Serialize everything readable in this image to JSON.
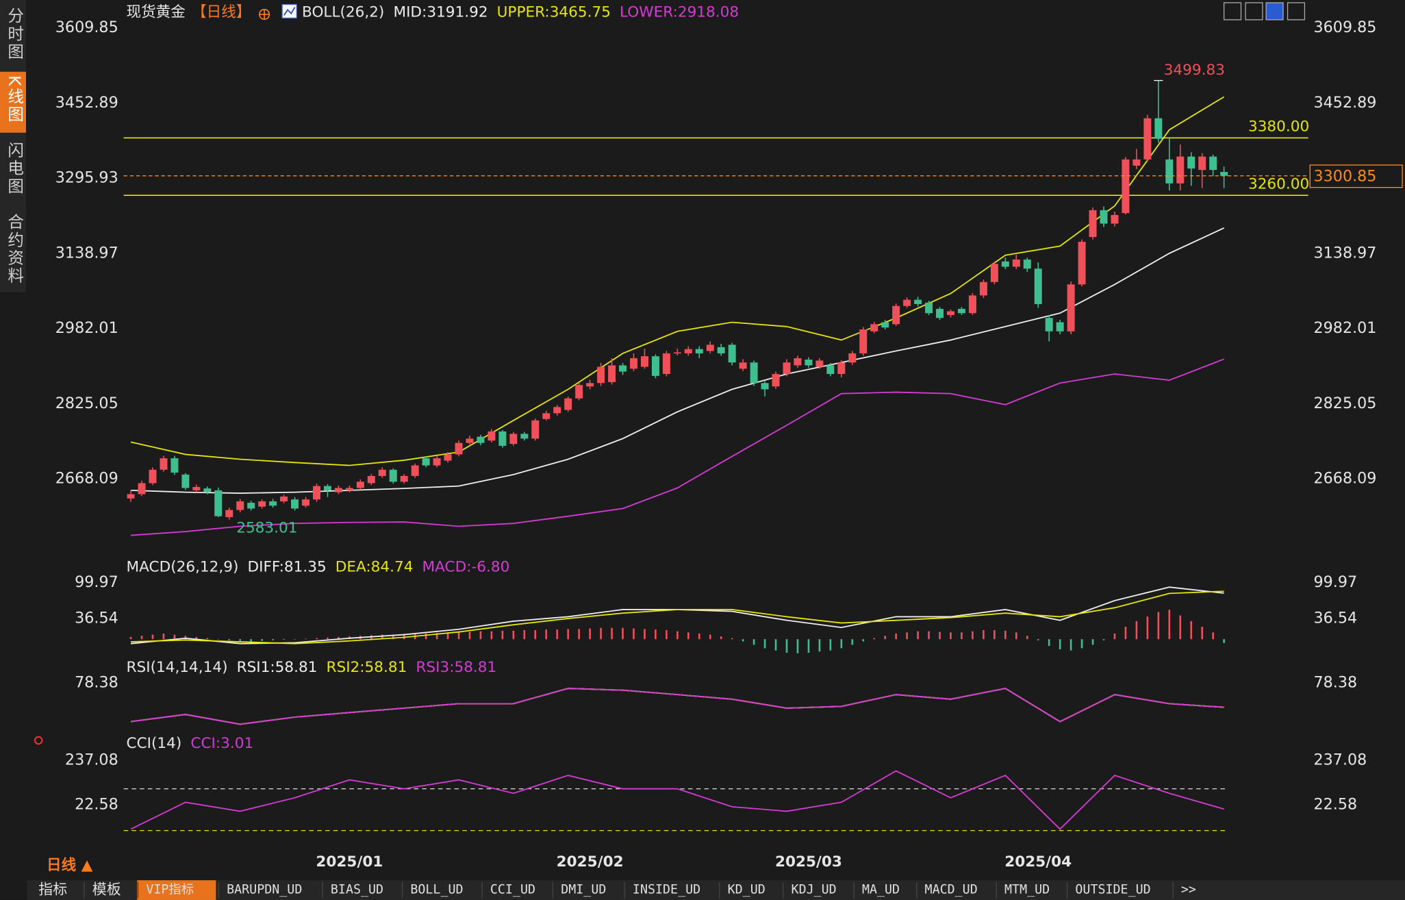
{
  "sidebar": [
    "分时图",
    "K线图",
    "闪电图",
    "合约资料"
  ],
  "header": {
    "instrument": "现货黄金",
    "period": "【日线】"
  },
  "footer": {
    "period": "日线 ▲",
    "tabs": [
      "指标",
      "模板",
      "VIP指标",
      "BARUPDN_UD",
      "BIAS_UD",
      "BOLL_UD",
      "CCI_UD",
      "DMI_UD",
      "INSIDE_UD",
      "KD_UD",
      "KDJ_UD",
      "MA_UD",
      "MACD_UD",
      "MTM_UD",
      "OUTSIDE_UD",
      ">>"
    ]
  },
  "chart_data": [
    {
      "type": "candlestick",
      "title": "BOLL(26,2)",
      "categories": [
        null,
        null,
        null,
        null,
        null,
        null,
        null,
        null,
        null,
        null,
        null,
        null,
        null,
        null,
        null,
        null,
        null,
        null,
        null,
        null,
        "2025/01",
        null,
        null,
        null,
        null,
        null,
        null,
        null,
        null,
        null,
        null,
        null,
        null,
        null,
        null,
        null,
        null,
        null,
        null,
        null,
        null,
        null,
        "2025/02",
        null,
        null,
        null,
        null,
        null,
        null,
        null,
        null,
        null,
        null,
        null,
        null,
        null,
        null,
        null,
        null,
        null,
        null,
        null,
        "2025/03",
        null,
        null,
        null,
        null,
        null,
        null,
        null,
        null,
        null,
        null,
        null,
        null,
        null,
        null,
        null,
        null,
        null,
        null,
        null,
        null,
        "2025/04",
        null,
        null,
        null,
        null,
        null,
        null,
        null,
        null,
        null,
        null,
        null,
        null,
        null,
        null,
        null,
        null,
        null
      ],
      "ohlc": [
        [
          2627,
          2645,
          2620,
          2636
        ],
        [
          2636,
          2664,
          2632,
          2659
        ],
        [
          2659,
          2692,
          2655,
          2687
        ],
        [
          2687,
          2716,
          2683,
          2711
        ],
        [
          2711,
          2716,
          2676,
          2681
        ],
        [
          2677,
          2680,
          2645,
          2649
        ],
        [
          2644,
          2656,
          2640,
          2651
        ],
        [
          2648,
          2652,
          2636,
          2640
        ],
        [
          2644,
          2650,
          2588,
          2590
        ],
        [
          2588,
          2608,
          2583.01,
          2603
        ],
        [
          2603,
          2626,
          2598,
          2621
        ],
        [
          2618,
          2622,
          2602,
          2606
        ],
        [
          2610,
          2625,
          2606,
          2621
        ],
        [
          2621,
          2626,
          2608,
          2612
        ],
        [
          2621,
          2635,
          2617,
          2631
        ],
        [
          2625,
          2630,
          2602,
          2606
        ],
        [
          2612,
          2630,
          2608,
          2625
        ],
        [
          2625,
          2658,
          2620,
          2653
        ],
        [
          2653,
          2657,
          2630,
          2644
        ],
        [
          2640,
          2654,
          2636,
          2649
        ],
        [
          2644,
          2654,
          2640,
          2649
        ],
        [
          2649,
          2667,
          2645,
          2662
        ],
        [
          2659,
          2678,
          2655,
          2674
        ],
        [
          2674,
          2692,
          2670,
          2687
        ],
        [
          2687,
          2690,
          2658,
          2662
        ],
        [
          2662,
          2678,
          2658,
          2674
        ],
        [
          2674,
          2700,
          2670,
          2696
        ],
        [
          2711,
          2715,
          2692,
          2696
        ],
        [
          2696,
          2715,
          2692,
          2711
        ],
        [
          2706,
          2724,
          2702,
          2719
        ],
        [
          2719,
          2748,
          2715,
          2743
        ],
        [
          2743,
          2758,
          2740,
          2752
        ],
        [
          2756,
          2760,
          2738,
          2743
        ],
        [
          2748,
          2772,
          2744,
          2767
        ],
        [
          2767,
          2770,
          2733,
          2737
        ],
        [
          2741,
          2766,
          2737,
          2762
        ],
        [
          2762,
          2766,
          2748,
          2752
        ],
        [
          2752,
          2794,
          2748,
          2790
        ],
        [
          2793,
          2810,
          2790,
          2805
        ],
        [
          2805,
          2822,
          2800,
          2818
        ],
        [
          2812,
          2840,
          2808,
          2836
        ],
        [
          2836,
          2868,
          2832,
          2864
        ],
        [
          2861,
          2875,
          2855,
          2868
        ],
        [
          2868,
          2910,
          2862,
          2902
        ],
        [
          2870,
          2920,
          2865,
          2905
        ],
        [
          2905,
          2910,
          2885,
          2892
        ],
        [
          2898,
          2930,
          2893,
          2920
        ],
        [
          2902,
          2940,
          2898,
          2924
        ],
        [
          2924,
          2928,
          2878,
          2883
        ],
        [
          2887,
          2935,
          2882,
          2930
        ],
        [
          2930,
          2940,
          2926,
          2932
        ],
        [
          2930,
          2945,
          2925,
          2939
        ],
        [
          2939,
          2945,
          2920,
          2930
        ],
        [
          2935,
          2955,
          2930,
          2948
        ],
        [
          2943,
          2950,
          2925,
          2930
        ],
        [
          2948,
          2952,
          2905,
          2911
        ],
        [
          2898,
          2918,
          2893,
          2911
        ],
        [
          2911,
          2915,
          2862,
          2868
        ],
        [
          2868,
          2872,
          2840,
          2855
        ],
        [
          2861,
          2892,
          2856,
          2887
        ],
        [
          2887,
          2918,
          2882,
          2911
        ],
        [
          2905,
          2925,
          2900,
          2920
        ],
        [
          2917,
          2922,
          2900,
          2905
        ],
        [
          2902,
          2920,
          2898,
          2915
        ],
        [
          2905,
          2910,
          2882,
          2887
        ],
        [
          2887,
          2916,
          2880,
          2911
        ],
        [
          2911,
          2935,
          2906,
          2930
        ],
        [
          2930,
          2985,
          2925,
          2980
        ],
        [
          2976,
          2996,
          2972,
          2991
        ],
        [
          2995,
          3000,
          2980,
          2984
        ],
        [
          2991,
          3034,
          2987,
          3029
        ],
        [
          3029,
          3047,
          3025,
          3042
        ],
        [
          3042,
          3048,
          3028,
          3033
        ],
        [
          3036,
          3040,
          3010,
          3014
        ],
        [
          3023,
          3027,
          3000,
          3004
        ],
        [
          3010,
          3022,
          3005,
          3018
        ],
        [
          3023,
          3027,
          3010,
          3014
        ],
        [
          3014,
          3056,
          3010,
          3051
        ],
        [
          3051,
          3084,
          3046,
          3079
        ],
        [
          3079,
          3122,
          3074,
          3117
        ],
        [
          3122,
          3130,
          3106,
          3111
        ],
        [
          3111,
          3136,
          3106,
          3126
        ],
        [
          3126,
          3130,
          3100,
          3107
        ],
        [
          3107,
          3120,
          3025,
          3033
        ],
        [
          3004,
          3010,
          2955,
          2976
        ],
        [
          2995,
          3000,
          2970,
          2976
        ],
        [
          2976,
          3080,
          2970,
          3074
        ],
        [
          3074,
          3168,
          3070,
          3163
        ],
        [
          3173,
          3235,
          3168,
          3229
        ],
        [
          3229,
          3237,
          3194,
          3201
        ],
        [
          3201,
          3226,
          3195,
          3219
        ],
        [
          3223,
          3340,
          3220,
          3335
        ],
        [
          3322,
          3357,
          3315,
          3335
        ],
        [
          3335,
          3428,
          3330,
          3421
        ],
        [
          3421,
          3499.83,
          3370,
          3378
        ],
        [
          3335,
          3380,
          3270,
          3285
        ],
        [
          3285,
          3366,
          3270,
          3341
        ],
        [
          3341,
          3350,
          3280,
          3316
        ],
        [
          3313,
          3348,
          3275,
          3341
        ],
        [
          3341,
          3345,
          3300,
          3313
        ],
        [
          3309,
          3320,
          3275,
          3300.85
        ]
      ],
      "up_color": "#f0505a",
      "down_color": "#3fbf8f",
      "last_price_color": "#ff8c1a",
      "x": [
        0,
        5,
        10,
        15,
        20,
        25,
        30,
        35,
        40,
        45,
        50,
        55,
        60,
        65,
        70,
        75,
        80,
        85,
        90,
        95,
        100
      ],
      "series": [
        {
          "name": "MID:3191.92",
          "color": "#eeeeee",
          "values": [
            2644,
            2640,
            2638,
            2640,
            2644,
            2648,
            2653,
            2677,
            2709,
            2752,
            2808,
            2855,
            2887,
            2911,
            2935,
            2958,
            2986,
            3014,
            3074,
            3139,
            3191.92
          ]
        },
        {
          "name": "UPPER:3465.75",
          "color": "#e6e600",
          "values": [
            2745,
            2719,
            2709,
            2702,
            2696,
            2707,
            2724,
            2790,
            2855,
            2930,
            2976,
            2995,
            2986,
            2958,
            3004,
            3055,
            3135,
            3154,
            3238,
            3397,
            3465.75
          ]
        },
        {
          "name": "LOWER:2918.08",
          "color": "#d63ad6",
          "values": [
            2550,
            2558,
            2569,
            2575,
            2577,
            2578,
            2569,
            2575,
            2590,
            2606,
            2649,
            2715,
            2780,
            2846,
            2849,
            2846,
            2823,
            2868,
            2887,
            2874,
            2918.08
          ]
        }
      ],
      "hlines": [
        {
          "value": 3380,
          "label": "3380.00",
          "color": "#e6e600"
        },
        {
          "value": 3260,
          "label": "3260.00",
          "color": "#e6e600"
        }
      ],
      "ylim": [
        2526.1,
        3626.7
      ],
      "yticks": [
        3609.85,
        3452.89,
        3295.93,
        3138.97,
        2982.01,
        2825.05,
        2668.09
      ],
      "grid": false
    },
    {
      "type": "macd",
      "title": "MACD(26,12,9)",
      "x": [
        0,
        5,
        10,
        15,
        20,
        25,
        30,
        35,
        40,
        45,
        50,
        55,
        60,
        65,
        70,
        75,
        80,
        85,
        90,
        95,
        100
      ],
      "series": [
        {
          "name": "DIFF:81.35",
          "color": "#eeeeee",
          "values": [
            -7.9,
            1.6,
            -7.9,
            -6.3,
            1.6,
            8,
            17.5,
            31.8,
            39.7,
            52.4,
            52.4,
            49.2,
            33.4,
            20.7,
            39.7,
            39.7,
            52.4,
            33.4,
            68.3,
            92,
            81.35
          ]
        },
        {
          "name": "DEA:84.74",
          "color": "#e6e600",
          "values": [
            -4.7,
            -1.5,
            -4.7,
            -7.9,
            -3.1,
            3.3,
            12.8,
            25.5,
            36.5,
            46.1,
            52.4,
            52.4,
            39.7,
            28.6,
            33.4,
            38.1,
            46.1,
            39.7,
            55.6,
            81,
            84.74
          ]
        }
      ],
      "histogram": {
        "name": "MACD:-6.80",
        "color": "#d63ad6",
        "up_color": "#f0505a",
        "down_color": "#3fbf8f",
        "values": [
          4,
          6,
          8,
          10,
          8,
          6,
          4,
          2,
          0,
          -2,
          -3,
          -4,
          -3,
          -2,
          -1,
          0,
          1,
          2,
          3,
          4,
          5,
          6,
          7,
          8,
          8,
          9,
          10,
          10,
          11,
          12,
          12,
          13,
          14,
          14,
          15,
          15,
          16,
          16,
          17,
          17,
          18,
          18,
          19,
          20,
          20,
          20,
          19,
          18,
          17,
          16,
          14,
          12,
          10,
          8,
          5,
          2,
          -4,
          -10,
          -16,
          -20,
          -24,
          -25,
          -24,
          -22,
          -20,
          -16,
          -10,
          -4,
          2,
          6,
          10,
          12,
          14,
          14,
          13,
          12,
          12,
          14,
          16,
          16,
          15,
          12,
          6,
          -2,
          -12,
          -18,
          -20,
          -16,
          -10,
          -2,
          10,
          22,
          32,
          40,
          48,
          52,
          42,
          32,
          22,
          12,
          -6.8
        ]
      },
      "ylim": [
        -31.65,
        134.86
      ],
      "yticks": [
        99.97,
        36.54
      ],
      "grid": false
    },
    {
      "type": "line",
      "title": "RSI(14,14,14)",
      "x": [
        0,
        5,
        10,
        15,
        20,
        25,
        30,
        35,
        40,
        45,
        50,
        55,
        60,
        65,
        70,
        75,
        80,
        85,
        90,
        95,
        100
      ],
      "series": [
        {
          "name": "RSI1:58.81",
          "color": "#eeeeee",
          "values": [
            47.2,
            53,
            45,
            50.8,
            54.5,
            58.1,
            61.7,
            61.7,
            74,
            72.6,
            69,
            65.3,
            58.1,
            59.5,
            69,
            65.3,
            74,
            47.2,
            69,
            61.7,
            58.81
          ]
        },
        {
          "name": "RSI2:58.81",
          "color": "#e6e600",
          "values": [
            47.2,
            53,
            45,
            50.8,
            54.5,
            58.1,
            61.7,
            61.7,
            74,
            72.6,
            69,
            65.3,
            58.1,
            59.5,
            69,
            65.3,
            74,
            47.2,
            69,
            61.7,
            58.81
          ]
        },
        {
          "name": "RSI3:58.81",
          "color": "#d63ad6",
          "values": [
            47.2,
            53,
            45,
            50.8,
            54.5,
            58.1,
            61.7,
            61.7,
            74,
            72.6,
            69,
            65.3,
            58.1,
            59.5,
            69,
            65.3,
            74,
            47.2,
            69,
            61.7,
            58.81
          ]
        }
      ],
      "ylim": [
        36.33,
        94.33
      ],
      "yticks": [
        78.38
      ],
      "grid": false
    },
    {
      "type": "line",
      "title": "CCI(14)",
      "x": [
        0,
        5,
        10,
        15,
        20,
        25,
        30,
        35,
        40,
        45,
        50,
        55,
        60,
        65,
        70,
        75,
        80,
        85,
        90,
        95,
        100
      ],
      "series": [
        {
          "name": "CCI:3.01",
          "color": "#d63ad6",
          "values": [
            -93.2,
            35.5,
            -7.5,
            56.9,
            142.7,
            99.8,
            142.7,
            78.4,
            164.2,
            99.8,
            99.8,
            14,
            -7.5,
            35.5,
            185.6,
            56.9,
            164.2,
            -93.2,
            164.2,
            78.4,
            3.01
          ]
        }
      ],
      "hlines": [
        {
          "value": 100,
          "color": "#dddddd"
        },
        {
          "value": -100,
          "color": "#e6e600"
        }
      ],
      "ylim": [
        -191.9,
        280
      ],
      "yticks": [
        237.08,
        22.58
      ],
      "grid": false
    }
  ]
}
